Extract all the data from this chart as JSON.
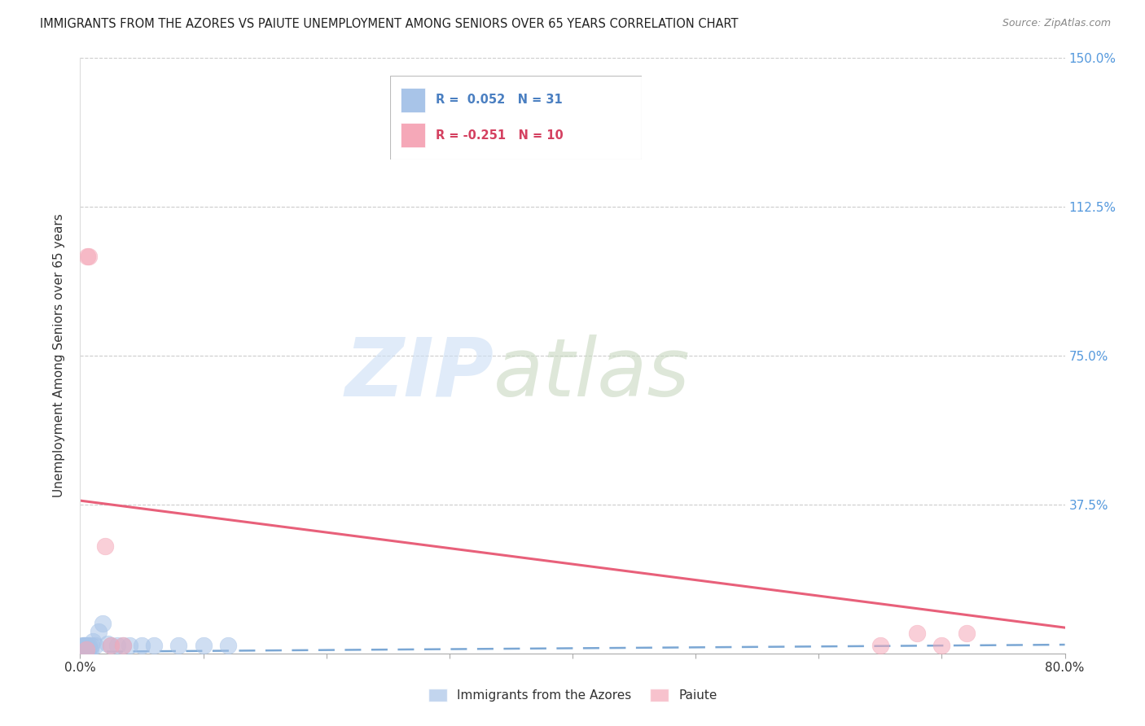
{
  "title": "IMMIGRANTS FROM THE AZORES VS PAIUTE UNEMPLOYMENT AMONG SENIORS OVER 65 YEARS CORRELATION CHART",
  "source": "Source: ZipAtlas.com",
  "ylabel": "Unemployment Among Seniors over 65 years",
  "xlim": [
    0.0,
    0.8
  ],
  "ylim": [
    0.0,
    1.5
  ],
  "blue_scatter_x": [
    0.001,
    0.002,
    0.002,
    0.003,
    0.003,
    0.003,
    0.004,
    0.004,
    0.004,
    0.005,
    0.005,
    0.006,
    0.006,
    0.007,
    0.007,
    0.008,
    0.009,
    0.01,
    0.012,
    0.015,
    0.018,
    0.022,
    0.025,
    0.03,
    0.035,
    0.04,
    0.05,
    0.06,
    0.08,
    0.1,
    0.12
  ],
  "blue_scatter_y": [
    0.01,
    0.01,
    0.02,
    0.01,
    0.01,
    0.02,
    0.01,
    0.02,
    0.02,
    0.01,
    0.02,
    0.01,
    0.02,
    0.01,
    0.02,
    0.01,
    0.02,
    0.03,
    0.02,
    0.055,
    0.075,
    0.025,
    0.02,
    0.02,
    0.02,
    0.02,
    0.02,
    0.02,
    0.02,
    0.02,
    0.02
  ],
  "pink_scatter_x": [
    0.006,
    0.007,
    0.02,
    0.025,
    0.035,
    0.65,
    0.68,
    0.7,
    0.72,
    0.005
  ],
  "pink_scatter_y": [
    1.0,
    1.0,
    0.27,
    0.02,
    0.02,
    0.02,
    0.05,
    0.02,
    0.05,
    0.01
  ],
  "blue_line_x0": 0.0,
  "blue_line_x1": 0.8,
  "blue_line_y0": 0.004,
  "blue_line_y1": 0.022,
  "pink_line_x0": 0.0,
  "pink_line_x1": 0.8,
  "pink_line_y0": 0.385,
  "pink_line_y1": 0.065,
  "legend_text_blue": "R =  0.052   N = 31",
  "legend_text_pink": "R = -0.251   N = 10",
  "bottom_legend_blue": "Immigrants from the Azores",
  "bottom_legend_pink": "Paiute",
  "blue_scatter_color": "#a8c4e8",
  "blue_line_color": "#7ba7d4",
  "pink_scatter_color": "#f5a8b8",
  "pink_line_color": "#e8607a",
  "legend_text_color_blue": "#4a7fc1",
  "legend_text_color_pink": "#d44060",
  "right_axis_color": "#5599dd",
  "scatter_size": 220,
  "background_color": "#ffffff",
  "grid_color": "#cccccc",
  "grid_yticks": [
    0.375,
    0.75,
    1.125,
    1.5
  ],
  "watermark_zip_color": "#ccdff5",
  "watermark_atlas_color": "#c8d8c0"
}
